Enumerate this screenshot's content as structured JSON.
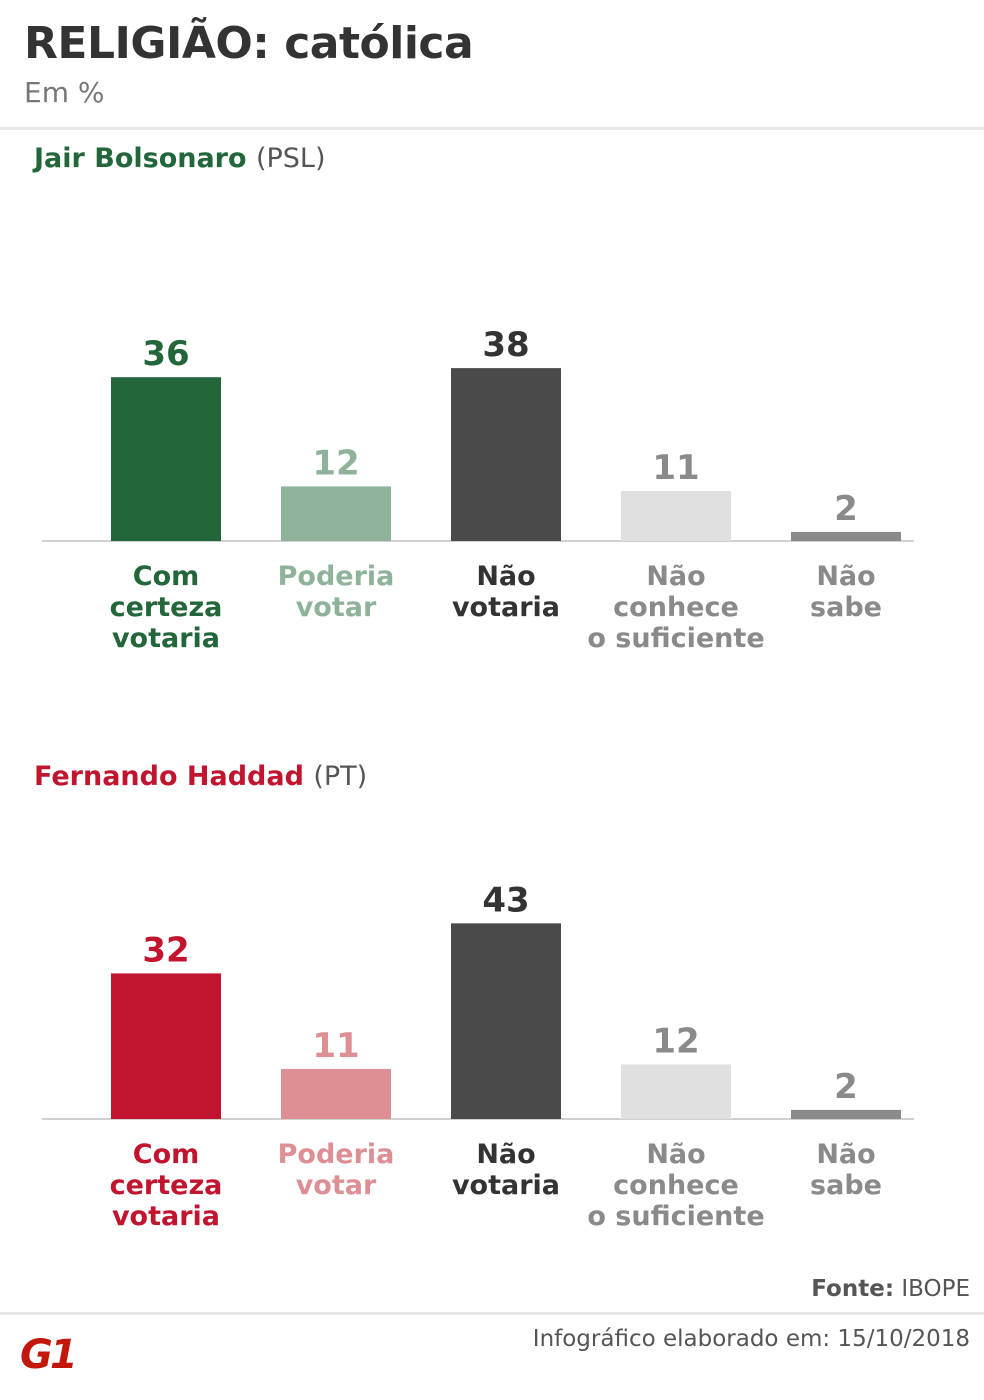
{
  "header": {
    "title": "RELIGIÃO: católica",
    "subtitle": "Em %"
  },
  "colors": {
    "bolsonaro": [
      "#22663a",
      "#8fb39a",
      "#4a4a4a",
      "#e0e0e0",
      "#8a8a8a"
    ],
    "bolsonaro_labels": [
      "#22663a",
      "#8fb39a",
      "#333333",
      "#8a8a8a",
      "#8a8a8a"
    ],
    "haddad": [
      "#c1152f",
      "#de8f94",
      "#4a4a4a",
      "#e0e0e0",
      "#8a8a8a"
    ],
    "haddad_labels": [
      "#c1152f",
      "#de8f94",
      "#333333",
      "#8a8a8a",
      "#8a8a8a"
    ]
  },
  "chart_data": [
    {
      "type": "bar",
      "title": "Jair Bolsonaro",
      "party": "(PSL)",
      "categories": [
        [
          "Com",
          "certeza",
          "votaria"
        ],
        [
          "Poderia",
          "votar"
        ],
        [
          "Não",
          "votaria"
        ],
        [
          "Não",
          "conhece",
          "o suficiente"
        ],
        [
          "Não",
          "sabe"
        ]
      ],
      "values": [
        36,
        12,
        38,
        11,
        2
      ],
      "ylim": [
        0,
        43
      ],
      "grid": false
    },
    {
      "type": "bar",
      "title": "Fernando Haddad",
      "party": "(PT)",
      "categories": [
        [
          "Com",
          "certeza",
          "votaria"
        ],
        [
          "Poderia",
          "votar"
        ],
        [
          "Não",
          "votaria"
        ],
        [
          "Não",
          "conhece",
          "o suficiente"
        ],
        [
          "Não",
          "sabe"
        ]
      ],
      "values": [
        32,
        11,
        43,
        12,
        2
      ],
      "ylim": [
        0,
        43
      ],
      "grid": false
    }
  ],
  "footer": {
    "source_label": "Fonte:",
    "source_value": "IBOPE",
    "note": "Infográfico elaborado em: 15/10/2018",
    "logo_text": "G1"
  },
  "icons": {
    "logo": "g1-logo-icon"
  }
}
